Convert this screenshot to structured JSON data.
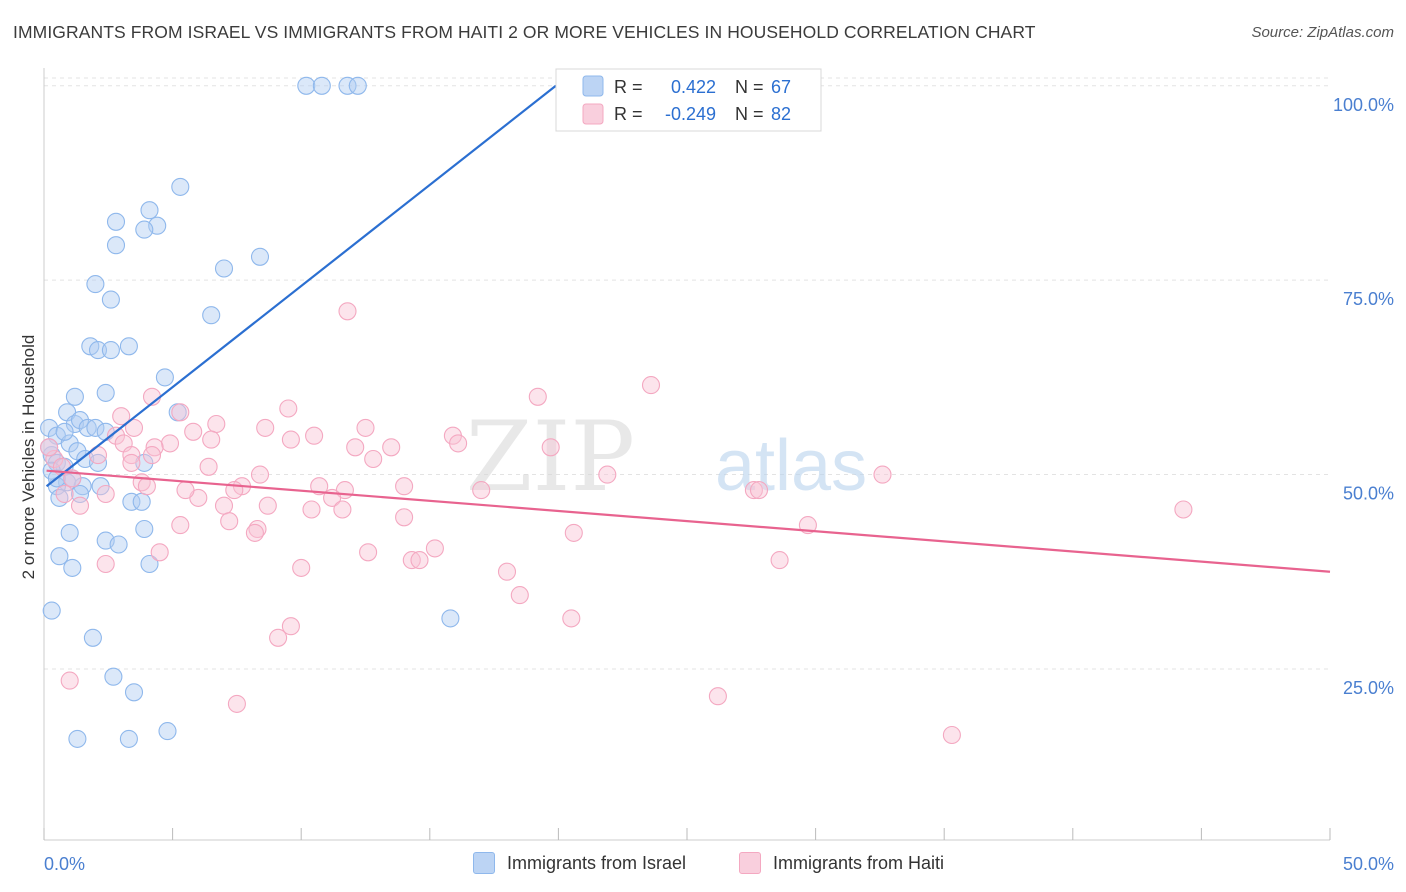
{
  "header": {
    "title": "IMMIGRANTS FROM ISRAEL VS IMMIGRANTS FROM HAITI 2 OR MORE VEHICLES IN HOUSEHOLD CORRELATION CHART",
    "source": "Source: ZipAtlas.com"
  },
  "watermark": {
    "zip": "ZIP",
    "atlas": "atlas"
  },
  "chart_data": {
    "type": "scatter",
    "title": "IMMIGRANTS FROM ISRAEL VS IMMIGRANTS FROM HAITI 2 OR MORE VEHICLES IN HOUSEHOLD CORRELATION CHART",
    "xlabel": "",
    "ylabel": "2 or more Vehicles in Household",
    "xlim": [
      0,
      50
    ],
    "ylim": [
      3,
      101
    ],
    "x_ticks": [
      "0.0%",
      "50.0%"
    ],
    "y_ticks": [
      {
        "value": 100,
        "label": "100.0%"
      },
      {
        "value": 75,
        "label": "75.0%"
      },
      {
        "value": 50,
        "label": "50.0%"
      },
      {
        "value": 25,
        "label": "25.0%"
      }
    ],
    "grid": true,
    "legend_position": "top-center",
    "series": [
      {
        "name": "Immigrants from Israel",
        "color": "#8fb8ec",
        "line_color": "#2b6fd1",
        "R": "0.422",
        "N": "67",
        "trend": {
          "x1": 0.1,
          "y1": 48.5,
          "x2": 19.9,
          "y2": 100
        },
        "points": [
          [
            10.2,
            100
          ],
          [
            10.8,
            100
          ],
          [
            11.8,
            100
          ],
          [
            12.2,
            100
          ],
          [
            5.3,
            87
          ],
          [
            4.1,
            84
          ],
          [
            4.4,
            82
          ],
          [
            2.8,
            82.5
          ],
          [
            3.9,
            81.5
          ],
          [
            2.8,
            79.5
          ],
          [
            7.0,
            76.5
          ],
          [
            8.4,
            78
          ],
          [
            2.0,
            74.5
          ],
          [
            2.6,
            72.5
          ],
          [
            6.5,
            70.5
          ],
          [
            1.8,
            66.5
          ],
          [
            2.1,
            66
          ],
          [
            3.3,
            66.5
          ],
          [
            2.6,
            66
          ],
          [
            4.7,
            62.5
          ],
          [
            2.4,
            60.5
          ],
          [
            1.2,
            60
          ],
          [
            0.9,
            58
          ],
          [
            5.2,
            58
          ],
          [
            0.2,
            56
          ],
          [
            0.5,
            55
          ],
          [
            1.2,
            56.5
          ],
          [
            1.4,
            57
          ],
          [
            1.7,
            56
          ],
          [
            2.0,
            56
          ],
          [
            2.4,
            55.5
          ],
          [
            1.0,
            54
          ],
          [
            1.3,
            53
          ],
          [
            0.3,
            52.5
          ],
          [
            0.5,
            51.5
          ],
          [
            0.8,
            51
          ],
          [
            1.6,
            52
          ],
          [
            2.1,
            51.5
          ],
          [
            0.9,
            49
          ],
          [
            1.5,
            48.5
          ],
          [
            2.2,
            48.5
          ],
          [
            0.5,
            48.5
          ],
          [
            0.3,
            50.5
          ],
          [
            1.4,
            47.5
          ],
          [
            3.4,
            46.5
          ],
          [
            0.6,
            47
          ],
          [
            3.8,
            46.5
          ],
          [
            3.9,
            51.5
          ],
          [
            1.0,
            42.5
          ],
          [
            2.4,
            41.5
          ],
          [
            2.9,
            41
          ],
          [
            3.9,
            43
          ],
          [
            0.6,
            39.5
          ],
          [
            1.1,
            38
          ],
          [
            4.1,
            38.5
          ],
          [
            0.3,
            32.5
          ],
          [
            1.9,
            29
          ],
          [
            2.7,
            24
          ],
          [
            3.5,
            22
          ],
          [
            1.3,
            16
          ],
          [
            3.3,
            16
          ],
          [
            4.8,
            17
          ],
          [
            15.8,
            31.5
          ],
          [
            0.5,
            49.5
          ],
          [
            1.1,
            49.5
          ],
          [
            0.8,
            55.5
          ],
          [
            0.2,
            53.5
          ]
        ]
      },
      {
        "name": "Immigrants from Haiti",
        "color": "#f4a8c1",
        "line_color": "#e8638f",
        "R": "-0.249",
        "N": "82",
        "trend": {
          "x1": 0.1,
          "y1": 50.5,
          "x2": 50,
          "y2": 37.5
        },
        "points": [
          [
            11.8,
            71
          ],
          [
            23.6,
            61.5
          ],
          [
            19.2,
            60
          ],
          [
            4.2,
            60
          ],
          [
            9.5,
            58.5
          ],
          [
            5.3,
            58
          ],
          [
            3.0,
            57.5
          ],
          [
            6.7,
            56.5
          ],
          [
            8.6,
            56
          ],
          [
            12.5,
            56
          ],
          [
            5.8,
            55.5
          ],
          [
            15.9,
            55
          ],
          [
            2.8,
            55
          ],
          [
            10.5,
            55
          ],
          [
            6.5,
            54.5
          ],
          [
            9.6,
            54.5
          ],
          [
            4.9,
            54
          ],
          [
            3.1,
            54
          ],
          [
            4.3,
            53.5
          ],
          [
            12.1,
            53.5
          ],
          [
            13.5,
            53.5
          ],
          [
            16.1,
            54
          ],
          [
            19.7,
            53.5
          ],
          [
            3.4,
            52.5
          ],
          [
            4.2,
            52.5
          ],
          [
            2.1,
            52.5
          ],
          [
            12.8,
            52
          ],
          [
            0.4,
            52
          ],
          [
            3.4,
            51.5
          ],
          [
            6.4,
            51
          ],
          [
            0.7,
            51
          ],
          [
            8.4,
            50
          ],
          [
            21.9,
            50
          ],
          [
            32.6,
            50
          ],
          [
            1.1,
            49.5
          ],
          [
            3.8,
            49
          ],
          [
            4.0,
            48.5
          ],
          [
            7.7,
            48.5
          ],
          [
            10.7,
            48.5
          ],
          [
            7.4,
            48
          ],
          [
            14.0,
            48.5
          ],
          [
            11.7,
            48
          ],
          [
            17.0,
            48
          ],
          [
            27.6,
            48
          ],
          [
            27.8,
            48
          ],
          [
            6.0,
            47
          ],
          [
            11.2,
            47
          ],
          [
            7.0,
            46
          ],
          [
            8.7,
            46
          ],
          [
            1.4,
            46
          ],
          [
            10.4,
            45.5
          ],
          [
            11.6,
            45.5
          ],
          [
            14.0,
            44.5
          ],
          [
            44.3,
            45.5
          ],
          [
            5.3,
            43.5
          ],
          [
            29.7,
            43.5
          ],
          [
            8.3,
            43
          ],
          [
            20.6,
            42.5
          ],
          [
            7.2,
            44
          ],
          [
            4.5,
            40
          ],
          [
            12.6,
            40
          ],
          [
            15.2,
            40.5
          ],
          [
            14.3,
            39
          ],
          [
            14.6,
            39
          ],
          [
            28.6,
            39
          ],
          [
            2.4,
            38.5
          ],
          [
            10.0,
            38
          ],
          [
            18.0,
            37.5
          ],
          [
            18.5,
            34.5
          ],
          [
            20.5,
            31.5
          ],
          [
            9.6,
            30.5
          ],
          [
            9.1,
            29
          ],
          [
            1.0,
            23.5
          ],
          [
            26.2,
            21.5
          ],
          [
            7.5,
            20.5
          ],
          [
            35.3,
            16.5
          ],
          [
            0.8,
            47.5
          ],
          [
            2.4,
            47.5
          ],
          [
            5.5,
            48
          ],
          [
            3.5,
            56
          ],
          [
            8.2,
            42.5
          ],
          [
            0.2,
            53.5
          ]
        ]
      }
    ]
  }
}
